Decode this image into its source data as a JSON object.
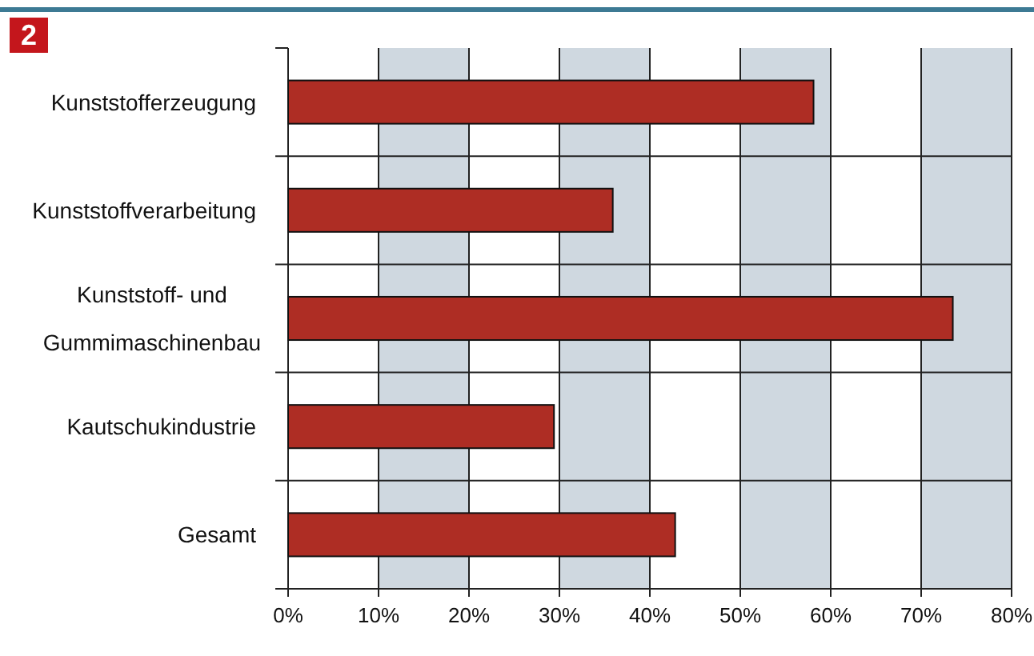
{
  "chart_data": {
    "type": "bar",
    "orientation": "horizontal",
    "title": "2",
    "categories": [
      "Kunststofferzeugung",
      "Kunststoffverarbeitung",
      "Kunststoff- und Gummimaschinenbau",
      "Kautschukindustrie",
      "Gesamt"
    ],
    "values": [
      58.1,
      35.9,
      73.5,
      29.4,
      42.8
    ],
    "color": "#ae2d24",
    "xlim": [
      0,
      80
    ],
    "xticks": [
      {
        "value": 0,
        "label": "0%"
      },
      {
        "value": 10,
        "label": "10%"
      },
      {
        "value": 20,
        "label": "20%"
      },
      {
        "value": 30,
        "label": "30%"
      },
      {
        "value": 40,
        "label": "40%"
      },
      {
        "value": 50,
        "label": "50%"
      },
      {
        "value": 60,
        "label": "60%"
      },
      {
        "value": 70,
        "label": "70%"
      },
      {
        "value": 80,
        "label": "80%"
      }
    ],
    "bands": [
      {
        "axis": "x",
        "from": 10,
        "to": 20,
        "color": "#cfd8e0"
      },
      {
        "axis": "x",
        "from": 30,
        "to": 40,
        "color": "#cfd8e0"
      },
      {
        "axis": "x",
        "from": 50,
        "to": 60,
        "color": "#cfd8e0"
      },
      {
        "axis": "x",
        "from": 70,
        "to": 80,
        "color": "#cfd8e0"
      }
    ],
    "grid": true
  }
}
